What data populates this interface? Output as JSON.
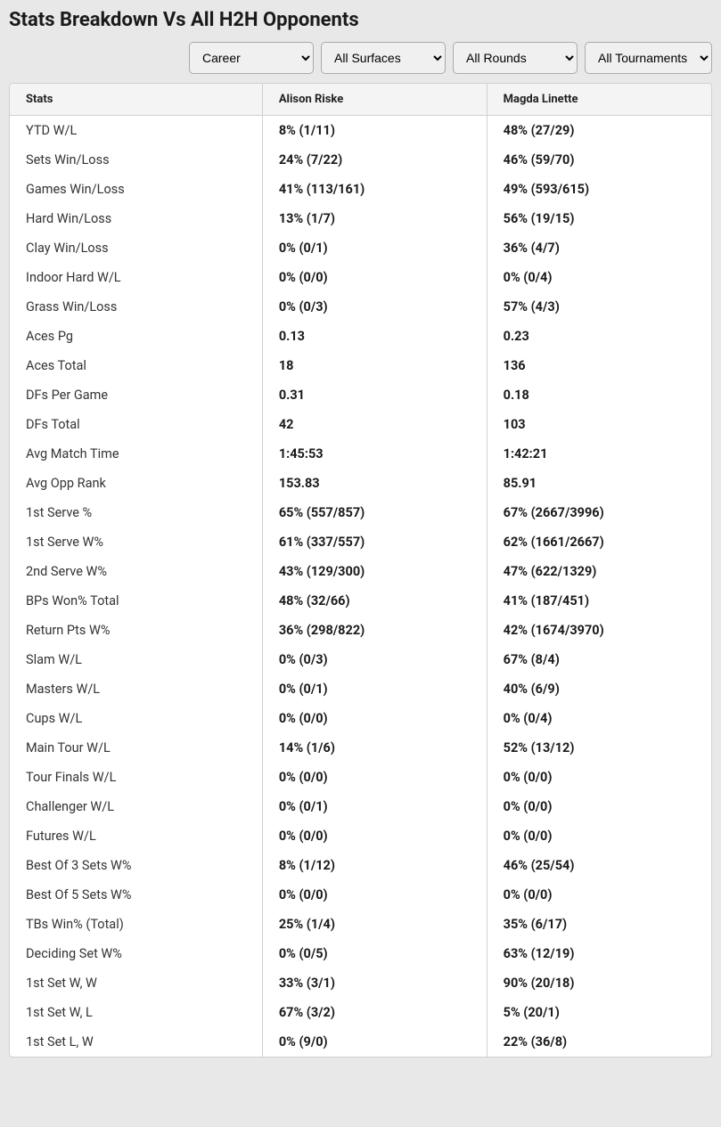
{
  "title": "Stats Breakdown Vs All H2H Opponents",
  "filters": {
    "period": "Career",
    "surface": "All Surfaces",
    "round": "All Rounds",
    "tournament": "All Tournaments"
  },
  "headers": {
    "stats": "Stats",
    "player1": "Alison Riske",
    "player2": "Magda Linette"
  },
  "rows": [
    {
      "label": "YTD W/L",
      "p1": "8% (1/11)",
      "p2": "48% (27/29)"
    },
    {
      "label": "Sets Win/Loss",
      "p1": "24% (7/22)",
      "p2": "46% (59/70)"
    },
    {
      "label": "Games Win/Loss",
      "p1": "41% (113/161)",
      "p2": "49% (593/615)"
    },
    {
      "label": "Hard Win/Loss",
      "p1": "13% (1/7)",
      "p2": "56% (19/15)"
    },
    {
      "label": "Clay Win/Loss",
      "p1": "0% (0/1)",
      "p2": "36% (4/7)"
    },
    {
      "label": "Indoor Hard W/L",
      "p1": "0% (0/0)",
      "p2": "0% (0/4)"
    },
    {
      "label": "Grass Win/Loss",
      "p1": "0% (0/3)",
      "p2": "57% (4/3)"
    },
    {
      "label": "Aces Pg",
      "p1": "0.13",
      "p2": "0.23"
    },
    {
      "label": "Aces Total",
      "p1": "18",
      "p2": "136"
    },
    {
      "label": "DFs Per Game",
      "p1": "0.31",
      "p2": "0.18"
    },
    {
      "label": "DFs Total",
      "p1": "42",
      "p2": "103"
    },
    {
      "label": "Avg Match Time",
      "p1": "1:45:53",
      "p2": "1:42:21"
    },
    {
      "label": "Avg Opp Rank",
      "p1": "153.83",
      "p2": "85.91"
    },
    {
      "label": "1st Serve %",
      "p1": "65% (557/857)",
      "p2": "67% (2667/3996)"
    },
    {
      "label": "1st Serve W%",
      "p1": "61% (337/557)",
      "p2": "62% (1661/2667)"
    },
    {
      "label": "2nd Serve W%",
      "p1": "43% (129/300)",
      "p2": "47% (622/1329)"
    },
    {
      "label": "BPs Won% Total",
      "p1": "48% (32/66)",
      "p2": "41% (187/451)"
    },
    {
      "label": "Return Pts W%",
      "p1": "36% (298/822)",
      "p2": "42% (1674/3970)"
    },
    {
      "label": "Slam W/L",
      "p1": "0% (0/3)",
      "p2": "67% (8/4)"
    },
    {
      "label": "Masters W/L",
      "p1": "0% (0/1)",
      "p2": "40% (6/9)"
    },
    {
      "label": "Cups W/L",
      "p1": "0% (0/0)",
      "p2": "0% (0/4)"
    },
    {
      "label": "Main Tour W/L",
      "p1": "14% (1/6)",
      "p2": "52% (13/12)"
    },
    {
      "label": "Tour Finals W/L",
      "p1": "0% (0/0)",
      "p2": "0% (0/0)"
    },
    {
      "label": "Challenger W/L",
      "p1": "0% (0/1)",
      "p2": "0% (0/0)"
    },
    {
      "label": "Futures W/L",
      "p1": "0% (0/0)",
      "p2": "0% (0/0)"
    },
    {
      "label": "Best Of 3 Sets W%",
      "p1": "8% (1/12)",
      "p2": "46% (25/54)"
    },
    {
      "label": "Best Of 5 Sets W%",
      "p1": "0% (0/0)",
      "p2": "0% (0/0)"
    },
    {
      "label": "TBs Win% (Total)",
      "p1": "25% (1/4)",
      "p2": "35% (6/17)"
    },
    {
      "label": "Deciding Set W%",
      "p1": "0% (0/5)",
      "p2": "63% (12/19)"
    },
    {
      "label": "1st Set W, W",
      "p1": "33% (3/1)",
      "p2": "90% (20/18)"
    },
    {
      "label": "1st Set W, L",
      "p1": "67% (3/2)",
      "p2": "5% (20/1)"
    },
    {
      "label": "1st Set L, W",
      "p1": "0% (9/0)",
      "p2": "22% (36/8)"
    }
  ]
}
